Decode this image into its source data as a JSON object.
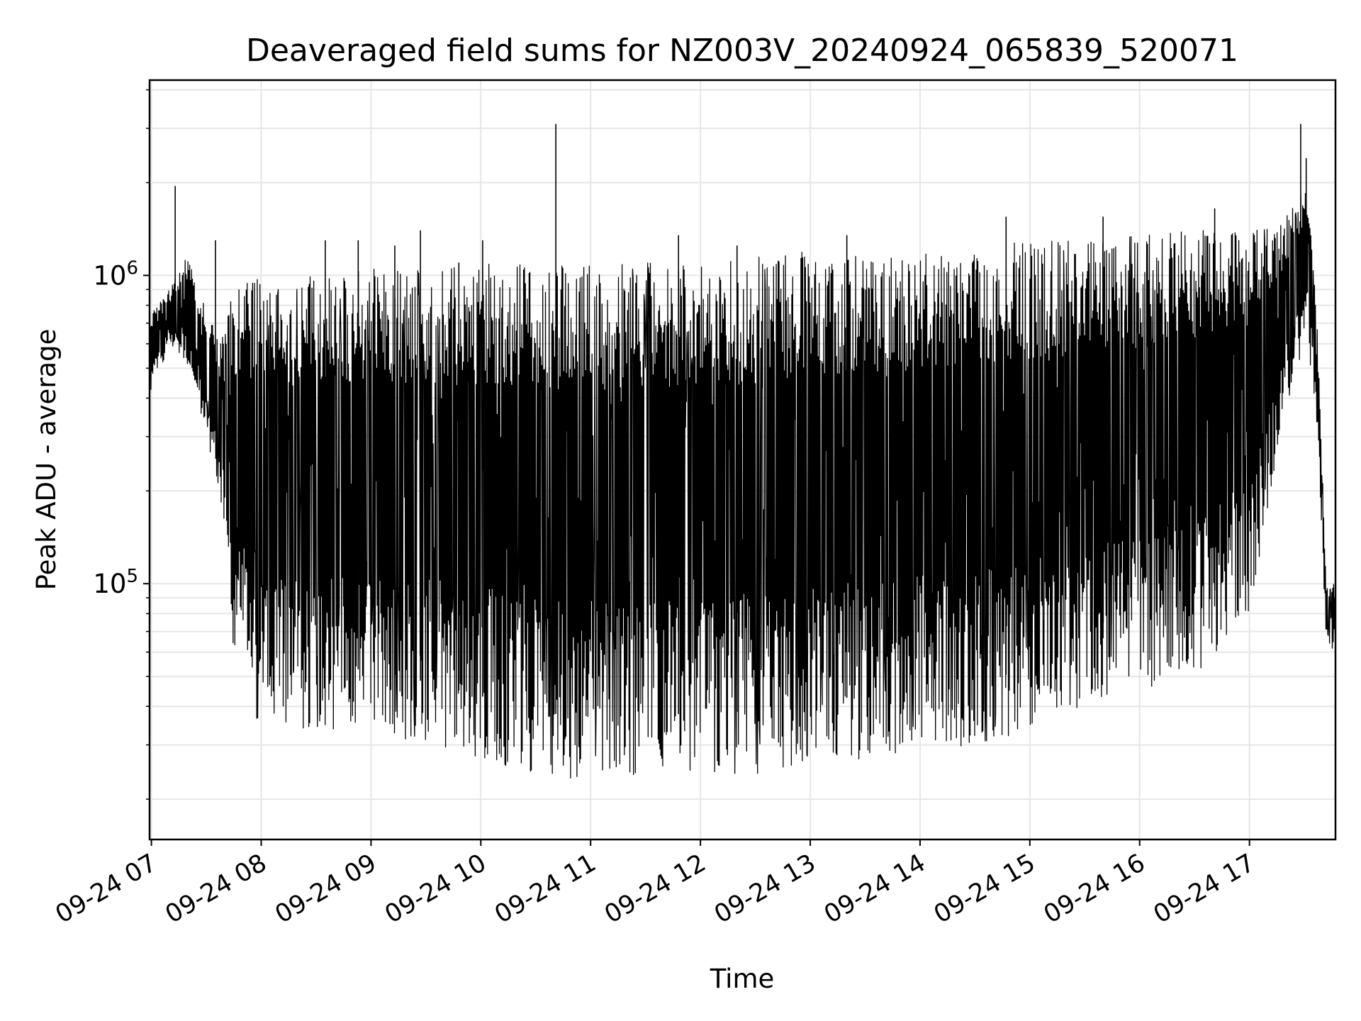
{
  "chart_data": {
    "type": "line",
    "title": "Deaveraged field sums for NZ003V_20240924_065839_520071",
    "xlabel": "Time",
    "ylabel": "Peak ADU - average",
    "yscale": "log",
    "ylim": [
      14800,
      4300000
    ],
    "xlim": [
      "2024-09-24 06:59",
      "2024-09-24 17:47"
    ],
    "grid": true,
    "line_color": "#000000",
    "grid_color": "#e6e6e6",
    "x_ticks": [
      {
        "t": "2024-09-24 07:00",
        "label": "09-24 07"
      },
      {
        "t": "2024-09-24 08:00",
        "label": "09-24 08"
      },
      {
        "t": "2024-09-24 09:00",
        "label": "09-24 09"
      },
      {
        "t": "2024-09-24 10:00",
        "label": "09-24 10"
      },
      {
        "t": "2024-09-24 11:00",
        "label": "09-24 11"
      },
      {
        "t": "2024-09-24 12:00",
        "label": "09-24 12"
      },
      {
        "t": "2024-09-24 13:00",
        "label": "09-24 13"
      },
      {
        "t": "2024-09-24 14:00",
        "label": "09-24 14"
      },
      {
        "t": "2024-09-24 15:00",
        "label": "09-24 15"
      },
      {
        "t": "2024-09-24 16:00",
        "label": "09-24 16"
      },
      {
        "t": "2024-09-24 17:00",
        "label": "09-24 17"
      }
    ],
    "y_ticks": [
      {
        "value": 100000,
        "base": "10",
        "exp": "5"
      },
      {
        "value": 1000000,
        "base": "10",
        "exp": "6"
      }
    ],
    "envelope": {
      "time": [
        "2024-09-24 06:59",
        "2024-09-24 07:10",
        "2024-09-24 07:20",
        "2024-09-24 07:30",
        "2024-09-24 07:37",
        "2024-09-24 07:45",
        "2024-09-24 08:00",
        "2024-09-24 08:30",
        "2024-09-24 09:00",
        "2024-09-24 09:30",
        "2024-09-24 10:00",
        "2024-09-24 10:30",
        "2024-09-24 11:00",
        "2024-09-24 11:30",
        "2024-09-24 12:00",
        "2024-09-24 12:30",
        "2024-09-24 13:00",
        "2024-09-24 13:30",
        "2024-09-24 14:00",
        "2024-09-24 14:30",
        "2024-09-24 15:00",
        "2024-09-24 15:30",
        "2024-09-24 16:00",
        "2024-09-24 16:30",
        "2024-09-24 17:00",
        "2024-09-24 17:15",
        "2024-09-24 17:25",
        "2024-09-24 17:32",
        "2024-09-24 17:37",
        "2024-09-24 17:42",
        "2024-09-24 17:47"
      ],
      "high": [
        750000,
        900000,
        1200000,
        800000,
        600000,
        900000,
        1000000,
        1000000,
        1050000,
        1050000,
        1100000,
        1100000,
        1100000,
        1100000,
        1150000,
        1150000,
        1200000,
        1200000,
        1200000,
        1250000,
        1300000,
        1300000,
        1350000,
        1400000,
        1400000,
        1450000,
        1700000,
        2000000,
        700000,
        100000,
        100000
      ],
      "low": [
        400000,
        600000,
        500000,
        300000,
        180000,
        60000,
        33000,
        33000,
        33000,
        30000,
        27000,
        24000,
        23000,
        23000,
        24000,
        24000,
        26000,
        27000,
        29000,
        30000,
        33000,
        40000,
        45000,
        50000,
        80000,
        250000,
        500000,
        600000,
        300000,
        65000,
        60000
      ]
    },
    "spikes": [
      {
        "t": "2024-09-24 07:13",
        "value": 1950000
      },
      {
        "t": "2024-09-24 07:35",
        "value": 1300000
      },
      {
        "t": "2024-09-24 08:35",
        "value": 1300000
      },
      {
        "t": "2024-09-24 08:53",
        "value": 1300000
      },
      {
        "t": "2024-09-24 09:13",
        "value": 1250000
      },
      {
        "t": "2024-09-24 09:27",
        "value": 1400000
      },
      {
        "t": "2024-09-24 09:48",
        "value": 1100000
      },
      {
        "t": "2024-09-24 10:01",
        "value": 1300000
      },
      {
        "t": "2024-09-24 10:41",
        "value": 3100000
      },
      {
        "t": "2024-09-24 11:48",
        "value": 1350000
      },
      {
        "t": "2024-09-24 12:20",
        "value": 1250000
      },
      {
        "t": "2024-09-24 13:20",
        "value": 1350000
      },
      {
        "t": "2024-09-24 14:47",
        "value": 1550000
      },
      {
        "t": "2024-09-24 15:40",
        "value": 1550000
      },
      {
        "t": "2024-09-24 16:41",
        "value": 1650000
      },
      {
        "t": "2024-09-24 17:28",
        "value": 3100000
      },
      {
        "t": "2024-09-24 17:31",
        "value": 2400000
      }
    ]
  }
}
